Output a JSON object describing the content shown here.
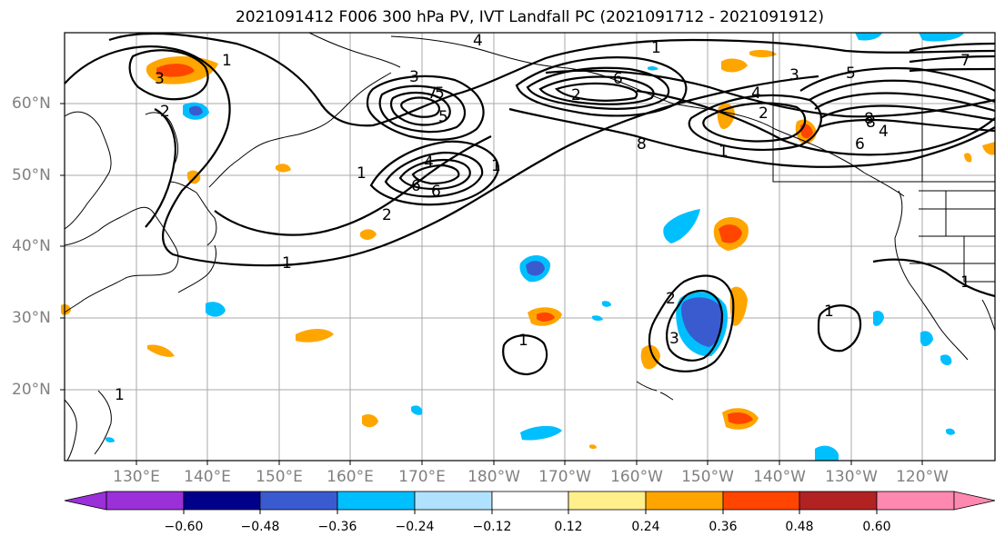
{
  "title": "2021091412 F006 300 hPa PV, IVT Landfall PC (2021091712 - 2021091912)",
  "map": {
    "lat_ticks": [
      "60°N",
      "50°N",
      "40°N",
      "30°N",
      "20°N"
    ],
    "lon_ticks": [
      "130°E",
      "140°E",
      "150°E",
      "160°E",
      "170°E",
      "180°W",
      "170°W",
      "160°W",
      "150°W",
      "140°W",
      "130°W",
      "120°W"
    ],
    "contour_labels": [
      "1",
      "1",
      "2",
      "3",
      "4",
      "5",
      "6",
      "7",
      "8",
      "1",
      "2",
      "3",
      "4",
      "5",
      "6",
      "1",
      "2",
      "3",
      "4",
      "5",
      "6",
      "7",
      "8",
      "1",
      "2",
      "3",
      "1",
      "1",
      "1",
      "1",
      "1",
      "2",
      "4",
      "6",
      "8"
    ]
  },
  "colorbar": {
    "labels": [
      "−0.60",
      "−0.48",
      "−0.36",
      "−0.24",
      "−0.12",
      "0.12",
      "0.24",
      "0.36",
      "0.48",
      "0.60"
    ],
    "colors": [
      "#9b30d9",
      "#00008b",
      "#3a5bd0",
      "#00bfff",
      "#b0e2ff",
      "#ffffff",
      "#fff08c",
      "#ffa500",
      "#ff4500",
      "#b22222",
      "#ff88b0"
    ]
  }
}
